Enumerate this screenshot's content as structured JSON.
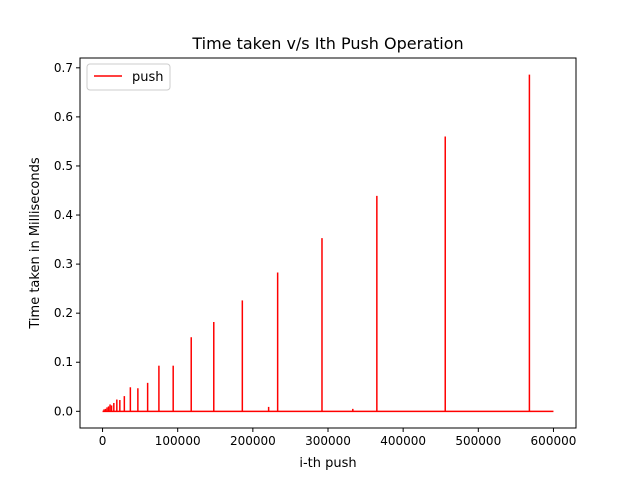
{
  "chart_data": {
    "type": "line",
    "title": "Time taken v/s Ith Push Operation",
    "xlabel": "i-th push",
    "ylabel": "Time taken in Milliseconds",
    "xlim": [
      -30000,
      630000
    ],
    "ylim": [
      -0.034,
      0.72
    ],
    "x_ticks": [
      0,
      100000,
      200000,
      300000,
      400000,
      500000,
      600000
    ],
    "x_tick_labels": [
      "0",
      "100000",
      "200000",
      "300000",
      "400000",
      "500000",
      "600000"
    ],
    "y_ticks": [
      0.0,
      0.1,
      0.2,
      0.3,
      0.4,
      0.5,
      0.6,
      0.7
    ],
    "y_tick_labels": [
      "0.0",
      "0.1",
      "0.2",
      "0.3",
      "0.4",
      "0.5",
      "0.6",
      "0.7"
    ],
    "grid": false,
    "legend_position": "top-left",
    "series": [
      {
        "name": "push",
        "color": "#ff0000",
        "baseline": 0.0,
        "x_end": 600000,
        "spikes": [
          {
            "x": 2000,
            "y": 0.004
          },
          {
            "x": 4000,
            "y": 0.005
          },
          {
            "x": 6000,
            "y": 0.008
          },
          {
            "x": 8000,
            "y": 0.01
          },
          {
            "x": 10000,
            "y": 0.014
          },
          {
            "x": 12000,
            "y": 0.012
          },
          {
            "x": 15000,
            "y": 0.017
          },
          {
            "x": 19000,
            "y": 0.024
          },
          {
            "x": 23000,
            "y": 0.023
          },
          {
            "x": 29000,
            "y": 0.031
          },
          {
            "x": 37000,
            "y": 0.049
          },
          {
            "x": 47000,
            "y": 0.047
          },
          {
            "x": 60000,
            "y": 0.058
          },
          {
            "x": 75000,
            "y": 0.093
          },
          {
            "x": 94000,
            "y": 0.093
          },
          {
            "x": 118000,
            "y": 0.151
          },
          {
            "x": 148000,
            "y": 0.182
          },
          {
            "x": 186000,
            "y": 0.226
          },
          {
            "x": 221000,
            "y": 0.009
          },
          {
            "x": 233000,
            "y": 0.283
          },
          {
            "x": 292000,
            "y": 0.353
          },
          {
            "x": 333000,
            "y": 0.005
          },
          {
            "x": 365000,
            "y": 0.439
          },
          {
            "x": 456000,
            "y": 0.56
          },
          {
            "x": 568000,
            "y": 0.686
          }
        ]
      }
    ]
  }
}
